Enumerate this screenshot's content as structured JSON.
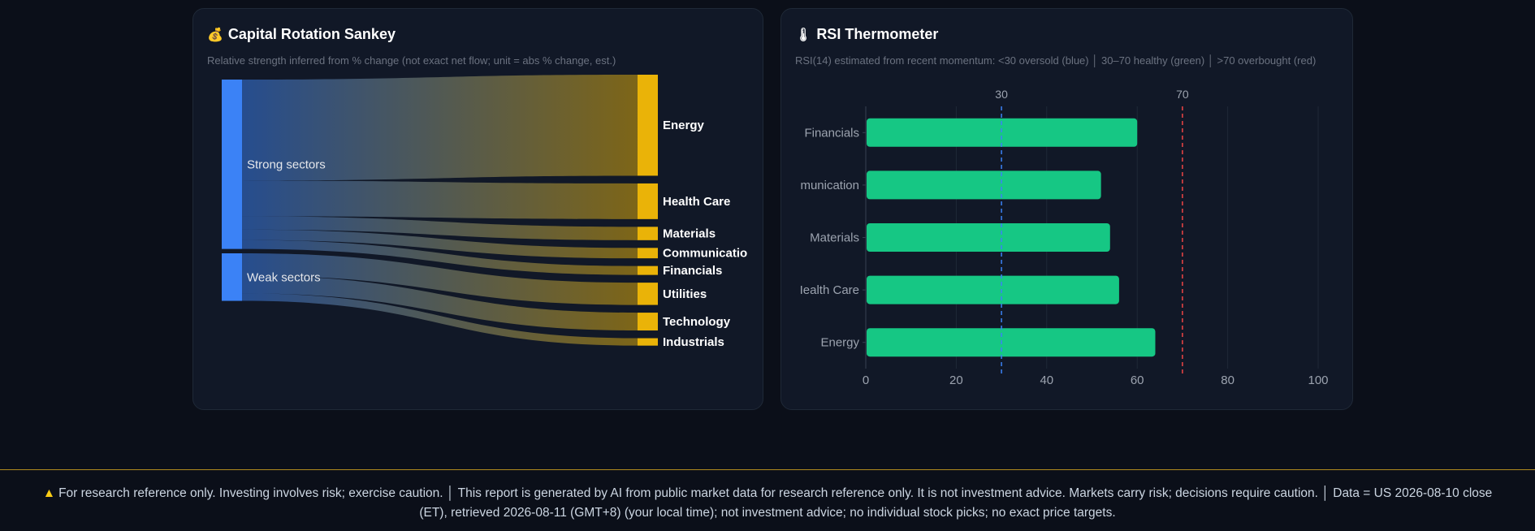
{
  "sankey": {
    "icon": "money-bag-icon",
    "title": "Capital Rotation Sankey",
    "subtitle": "Relative strength inferred from % change (not exact net flow; unit = abs % change, est.)",
    "sources": [
      "Strong sectors",
      "Weak sectors"
    ],
    "targets": [
      "Energy",
      "Health Care",
      "Materials",
      "Communicatio",
      "Financials",
      "Utilities",
      "Technology",
      "Industrials"
    ],
    "source_color": "#3b82f6",
    "target_color": "#eab308"
  },
  "rsi": {
    "icon": "thermometer-icon",
    "title": "RSI Thermometer",
    "subtitle": "RSI(14) estimated from recent momentum: <30 oversold (blue) │ 30–70 healthy (green) │ >70 overbought (red)",
    "reference_lines": [
      {
        "label": "30",
        "value": 30,
        "color": "#3b82f6"
      },
      {
        "label": "70",
        "value": 70,
        "color": "#ef4444"
      }
    ],
    "bar_color": "#16c784"
  },
  "chart_data": [
    {
      "type": "sankey",
      "title": "Capital Rotation Sankey",
      "links": [
        {
          "source": "Strong sectors",
          "target": "Energy",
          "value": 6.8
        },
        {
          "source": "Strong sectors",
          "target": "Health Care",
          "value": 2.4
        },
        {
          "source": "Strong sectors",
          "target": "Materials",
          "value": 0.9
        },
        {
          "source": "Strong sectors",
          "target": "Communicatio",
          "value": 0.7
        },
        {
          "source": "Strong sectors",
          "target": "Financials",
          "value": 0.6
        },
        {
          "source": "Weak sectors",
          "target": "Utilities",
          "value": 1.5
        },
        {
          "source": "Weak sectors",
          "target": "Technology",
          "value": 1.2
        },
        {
          "source": "Weak sectors",
          "target": "Industrials",
          "value": 0.5
        }
      ]
    },
    {
      "type": "bar",
      "orientation": "horizontal",
      "title": "RSI Thermometer",
      "categories": [
        "Financials",
        "Communication",
        "Materials",
        "Health Care",
        "Energy"
      ],
      "category_labels": [
        "Financials",
        "munication",
        "Materials",
        "Iealth Care",
        "Energy"
      ],
      "values": [
        60,
        52,
        54,
        56,
        64
      ],
      "xlim": [
        0,
        100
      ],
      "xticks": [
        "0",
        "20",
        "40",
        "60",
        "80",
        "100"
      ],
      "grid": true
    }
  ],
  "footer": {
    "warning_icon": "warning-icon",
    "text": "For research reference only. Investing involves risk; exercise caution.  │  This report is generated by AI from public market data for research reference only. It is not investment advice. Markets carry risk; decisions require caution.  │  Data = US 2026-08-10 close (ET), retrieved 2026-08-11 (GMT+8) (your local time); not investment advice; no individual stock picks; no exact price targets."
  }
}
